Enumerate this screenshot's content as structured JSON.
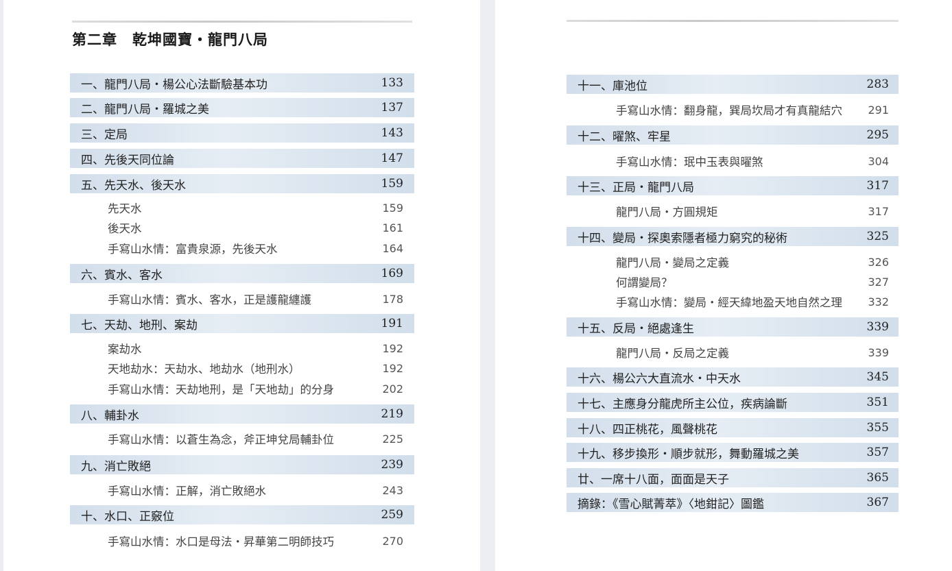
{
  "left_page": {
    "chapter_title": "第二章　乾坤國寶・龍門八局",
    "entries": [
      {
        "type": "head",
        "title": "一、龍門八局・楊公心法斷驗基本功",
        "page": "133"
      },
      {
        "type": "head",
        "title": "二、龍門八局・羅城之美",
        "page": "137"
      },
      {
        "type": "head",
        "title": "三、定局",
        "page": "143"
      },
      {
        "type": "head",
        "title": "四、先後天同位論",
        "page": "147"
      },
      {
        "type": "head",
        "title": "五、先天水、後天水",
        "page": "159"
      },
      {
        "type": "sub",
        "title": "先天水",
        "page": "159"
      },
      {
        "type": "sub",
        "title": "後天水",
        "page": "161"
      },
      {
        "type": "sub",
        "title": "手寫山水情：富貴泉源，先後天水",
        "page": "164"
      },
      {
        "type": "head",
        "title": "六、賓水、客水",
        "page": "169"
      },
      {
        "type": "sub",
        "title": "手寫山水情：賓水、客水，正是護龍纏護",
        "page": "178"
      },
      {
        "type": "head",
        "title": "七、天劫、地刑、案劫",
        "page": "191"
      },
      {
        "type": "sub",
        "title": "案劫水",
        "page": "192"
      },
      {
        "type": "sub",
        "title": "天地劫水：天劫水、地劫水（地刑水）",
        "page": "192"
      },
      {
        "type": "sub",
        "title": "手寫山水情：天劫地刑，是「天地劫」的分身",
        "page": "202"
      },
      {
        "type": "head",
        "title": "八、輔卦水",
        "page": "219"
      },
      {
        "type": "sub",
        "title": "手寫山水情：以蒼生為念，斧正坤兌局輔卦位",
        "page": "225"
      },
      {
        "type": "head",
        "title": "九、消亡敗絕",
        "page": "239"
      },
      {
        "type": "sub",
        "title": "手寫山水情：正解，消亡敗絕水",
        "page": "243"
      },
      {
        "type": "head",
        "title": "十、水口、正竅位",
        "page": "259"
      },
      {
        "type": "sub",
        "title": "手寫山水情：水口是母法・昇華第二明師技巧",
        "page": "270"
      }
    ]
  },
  "right_page": {
    "entries": [
      {
        "type": "head",
        "title": "十一、庫池位",
        "page": "283"
      },
      {
        "type": "sub",
        "title": "手寫山水情：翻身龍，巽局坎局才有真龍結穴",
        "page": "291"
      },
      {
        "type": "head",
        "title": "十二、曜煞、牢星",
        "page": "295"
      },
      {
        "type": "sub",
        "title": "手寫山水情：珉中玉表與曜煞",
        "page": "304"
      },
      {
        "type": "head",
        "title": "十三、正局・龍門八局",
        "page": "317"
      },
      {
        "type": "sub",
        "title": "龍門八局・方圓規矩",
        "page": "317"
      },
      {
        "type": "head",
        "title": "十四、變局・探奧索隱者極力窮究的秘術",
        "page": "325"
      },
      {
        "type": "sub",
        "title": "龍門八局・變局之定義",
        "page": "326"
      },
      {
        "type": "sub",
        "title": "何謂變局？",
        "page": "327"
      },
      {
        "type": "sub",
        "title": "手寫山水情：變局・經天緯地盈天地自然之理",
        "page": "332"
      },
      {
        "type": "head",
        "title": "十五、反局・絕處逢生",
        "page": "339"
      },
      {
        "type": "sub",
        "title": "龍門八局・反局之定義",
        "page": "339"
      },
      {
        "type": "head",
        "title": "十六、楊公六大直流水・中天水",
        "page": "345"
      },
      {
        "type": "head",
        "title": "十七、主應身分龍虎所主公位，疾病論斷",
        "page": "351"
      },
      {
        "type": "head",
        "title": "十八、四正桃花，風聲桃花",
        "page": "355"
      },
      {
        "type": "head",
        "title": "十九、移步換形・順步就形，舞動羅城之美",
        "page": "357"
      },
      {
        "type": "head",
        "title": "廿、一席十八面，面面是天子",
        "page": "365"
      },
      {
        "type": "head",
        "title": "摘錄：《雪心賦菁萃》〈地鉗記〉圖鑑",
        "page": "367"
      }
    ]
  }
}
